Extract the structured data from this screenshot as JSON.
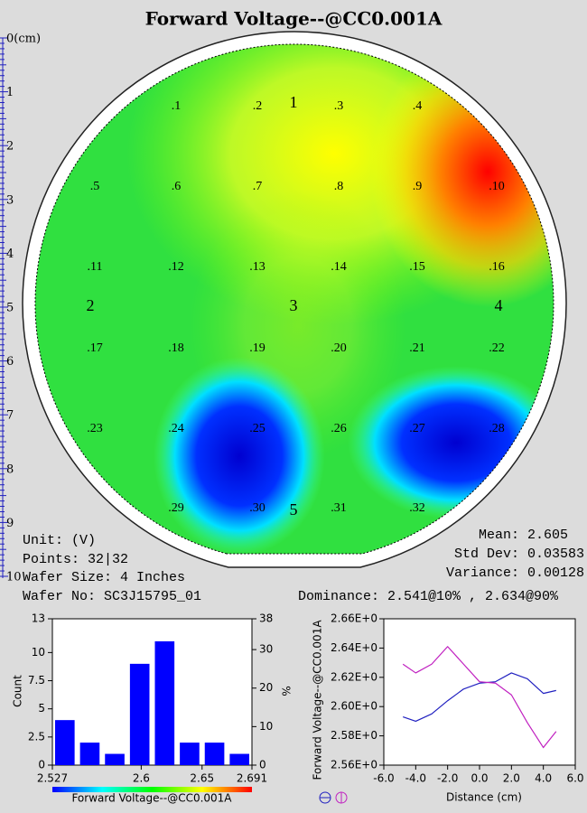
{
  "title": "Forward Voltage--@CC0.001A",
  "ruler": {
    "lim": [
      0,
      10
    ],
    "ticks": [
      {
        "value": 0,
        "label": "0(cm)"
      },
      1,
      2,
      3,
      4,
      5,
      6,
      7,
      8,
      9,
      10
    ]
  },
  "wafer": {
    "points": [
      ".1",
      ".2",
      ".3",
      ".4",
      ".5",
      ".6",
      ".7",
      ".8",
      ".9",
      ".10",
      ".11",
      ".12",
      ".13",
      ".14",
      ".15",
      ".16",
      ".17",
      ".18",
      ".19",
      ".20",
      ".21",
      ".22",
      ".23",
      ".24",
      ".25",
      ".26",
      ".27",
      ".28",
      ".29",
      ".30",
      ".31",
      ".32"
    ],
    "regions": [
      "1",
      "2",
      "3",
      "4",
      "5"
    ]
  },
  "info": {
    "unit": "Unit: (V)",
    "points": "Points: 32|32",
    "wafer_size": "Wafer Size: 4 Inches",
    "wafer_no": "Wafer No: SC3J15795_01",
    "mean": "Mean: 2.605",
    "std_dev": "Std Dev: 0.03583",
    "variance": "Variance: 0.00128",
    "dominance": "Dominance: 2.541@10% , 2.634@90%"
  },
  "histogram": {
    "type": "bar",
    "ylabel": "Count",
    "y2label": "%",
    "color": "#0000ff",
    "bins": [
      2.527,
      2.5475,
      2.568,
      2.5885,
      2.609,
      2.6295,
      2.65,
      2.6705,
      2.691
    ],
    "values": [
      4,
      2,
      1,
      9,
      11,
      2,
      2,
      1
    ],
    "xlim": [
      2.527,
      2.691
    ],
    "xticks": [
      2.527,
      2.6,
      2.65,
      2.691
    ],
    "ylim": [
      0,
      13
    ],
    "yticks": [
      0,
      2.5,
      5,
      7.5,
      10,
      13
    ],
    "y2lim": [
      0,
      38
    ],
    "y2ticks": [
      0,
      10,
      20,
      30,
      38
    ],
    "colorbar_label": "Forward Voltage--@CC0.001A"
  },
  "profile": {
    "type": "line",
    "ylabel": "Forward Voltage--@CC0.001A",
    "xlabel": "Distance (cm)",
    "x": [
      -4.8,
      -4,
      -3,
      -2,
      -1,
      0,
      1,
      2,
      3,
      4,
      4.8
    ],
    "series": [
      {
        "color": "#2020c0",
        "values": [
          2.593,
          2.59,
          2.595,
          2.604,
          2.612,
          2.616,
          2.617,
          2.623,
          2.619,
          2.609,
          2.611
        ]
      },
      {
        "color": "#c020c0",
        "values": [
          2.629,
          2.623,
          2.629,
          2.641,
          2.629,
          2.617,
          2.616,
          2.608,
          2.589,
          2.572,
          2.583
        ]
      }
    ],
    "xlim": [
      -6,
      6
    ],
    "xticks": [
      {
        "value": -6,
        "label": "-6.0"
      },
      {
        "value": -4,
        "label": "-4.0"
      },
      {
        "value": -2,
        "label": "-2.0"
      },
      {
        "value": 0,
        "label": "0.0"
      },
      {
        "value": 2,
        "label": "2.0"
      },
      {
        "value": 4,
        "label": "4.0"
      },
      {
        "value": 6,
        "label": "6.0"
      }
    ],
    "ylim": [
      2.56,
      2.66
    ],
    "yticks": [
      {
        "value": 2.56,
        "label": "2.56E+0"
      },
      {
        "value": 2.58,
        "label": "2.58E+0"
      },
      {
        "value": 2.6,
        "label": "2.60E+0"
      },
      {
        "value": 2.62,
        "label": "2.62E+0"
      },
      {
        "value": 2.64,
        "label": "2.64E+0"
      },
      {
        "value": 2.66,
        "label": "2.66E+0"
      }
    ]
  }
}
